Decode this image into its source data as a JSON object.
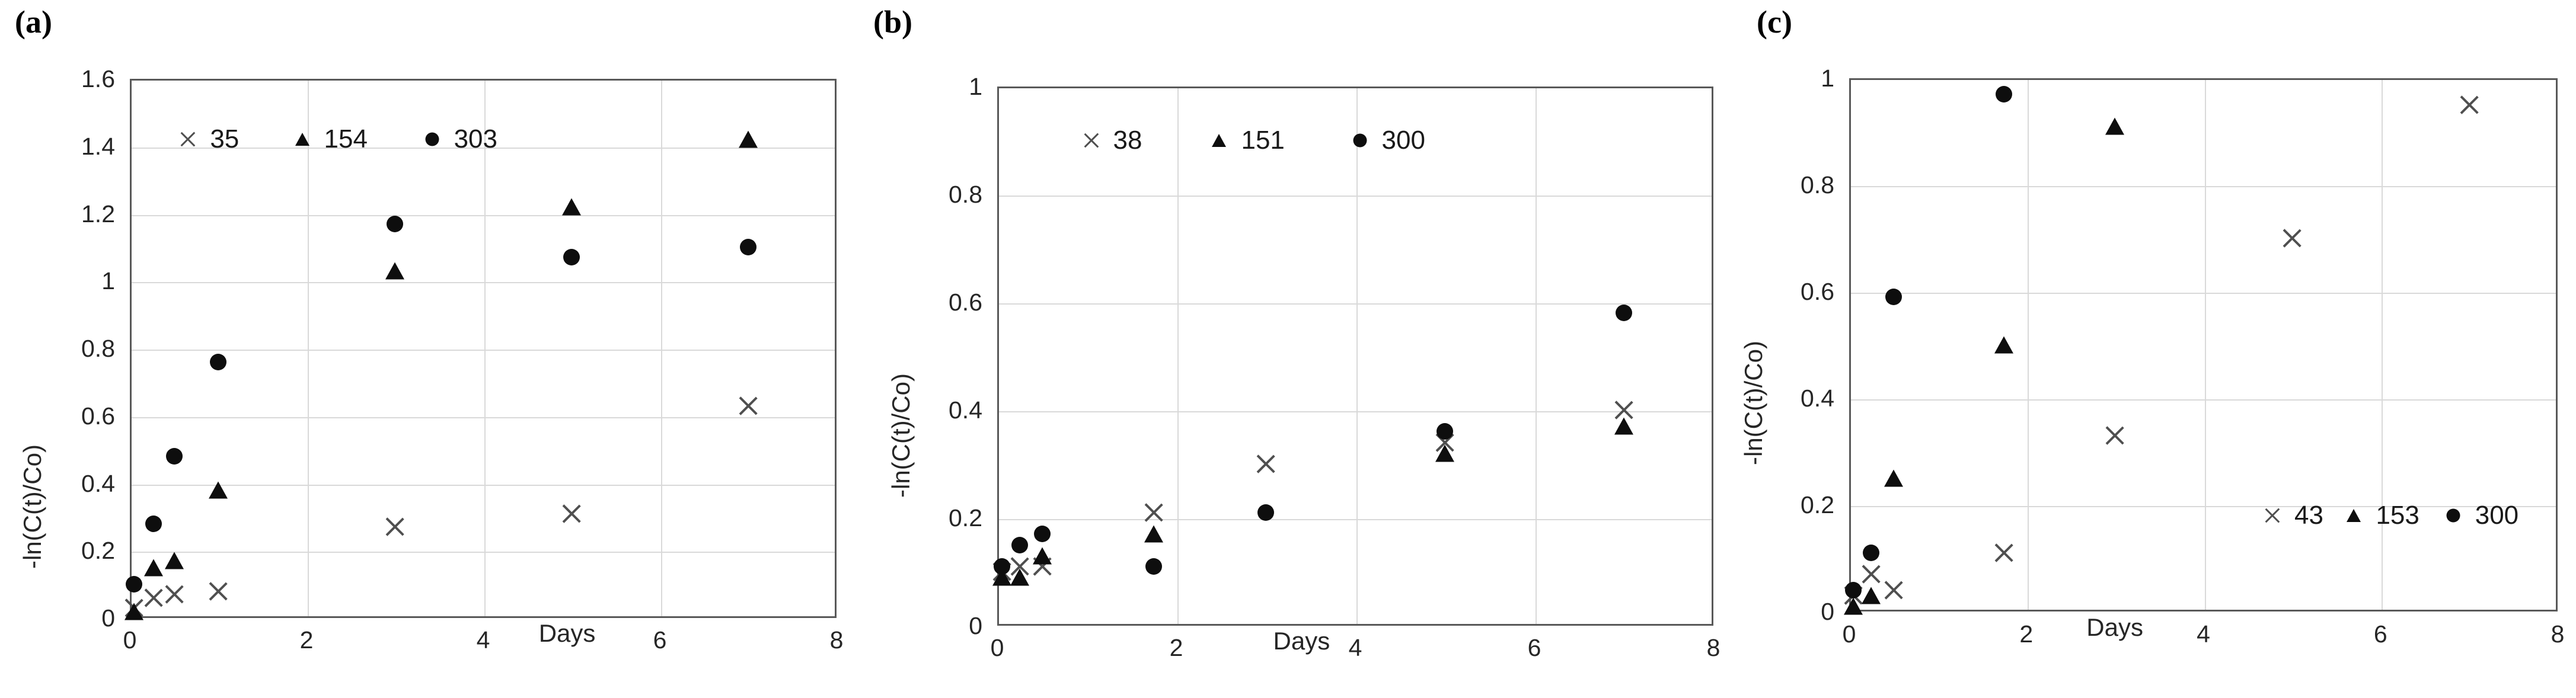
{
  "figure": {
    "background": "#ffffff",
    "colors": {
      "marker_black": "#0e0e0e",
      "marker_cross_gray": "#4f4f4f",
      "gridline": "#d9d9d9",
      "plot_border": "#595959",
      "text": "#262626"
    }
  },
  "chart_data": [
    {
      "type": "scatter",
      "panel_label": "(a)",
      "title": "",
      "xlabel": "Days",
      "ylabel": "-ln(C(t)/Co)",
      "xlim": [
        0,
        8
      ],
      "ylim": [
        0,
        1.6
      ],
      "grid": true,
      "x_ticks": [
        "0",
        "2",
        "4",
        "6",
        "8"
      ],
      "x_tick_values": [
        0,
        2,
        4,
        6,
        8
      ],
      "y_ticks": [
        "0",
        "0.2",
        "0.4",
        "0.6",
        "0.8",
        "1",
        "1.2",
        "1.4",
        "1.6"
      ],
      "y_tick_values": [
        0,
        0.2,
        0.4,
        0.6,
        0.8,
        1.0,
        1.2,
        1.4,
        1.6
      ],
      "xlabel_day_position": 4.95,
      "legend": {
        "placement": "inside-top",
        "y_value": 1.42,
        "items": [
          {
            "marker": "cross",
            "label": "35",
            "x_value": 0.66
          },
          {
            "marker": "triangle",
            "label": "154",
            "x_value": 1.95
          },
          {
            "marker": "circle",
            "label": "303",
            "x_value": 3.42
          }
        ]
      },
      "series": [
        {
          "name": "35",
          "marker": "cross",
          "points": [
            [
              0.05,
              0.03
            ],
            [
              0.27,
              0.06
            ],
            [
              0.5,
              0.07
            ],
            [
              1,
              0.08
            ],
            [
              3,
              0.27
            ],
            [
              5,
              0.31
            ],
            [
              7,
              0.63
            ]
          ]
        },
        {
          "name": "154",
          "marker": "triangle",
          "points": [
            [
              0.05,
              0.02
            ],
            [
              0.27,
              0.15
            ],
            [
              0.5,
              0.17
            ],
            [
              1,
              0.38
            ],
            [
              3,
              1.03
            ],
            [
              5,
              1.22
            ],
            [
              7,
              1.42
            ]
          ]
        },
        {
          "name": "303",
          "marker": "circle",
          "points": [
            [
              0.05,
              0.1
            ],
            [
              0.27,
              0.28
            ],
            [
              0.5,
              0.48
            ],
            [
              1,
              0.76
            ],
            [
              3,
              1.17
            ],
            [
              5,
              1.07
            ],
            [
              7,
              1.1
            ]
          ]
        }
      ]
    },
    {
      "type": "scatter",
      "panel_label": "(b)",
      "title": "",
      "xlabel": "Days",
      "ylabel": "-ln(C(t)/Co)",
      "xlim": [
        0,
        8
      ],
      "ylim": [
        0,
        1
      ],
      "grid": true,
      "x_ticks": [
        "0",
        "2",
        "4",
        "6",
        "8"
      ],
      "x_tick_values": [
        0,
        2,
        4,
        6,
        8
      ],
      "y_ticks": [
        "0",
        "0.2",
        "0.4",
        "0.6",
        "0.8",
        "1"
      ],
      "y_tick_values": [
        0,
        0.2,
        0.4,
        0.6,
        0.8,
        1.0
      ],
      "xlabel_day_position": 3.4,
      "legend": {
        "placement": "inside-top",
        "y_value": 0.9,
        "items": [
          {
            "marker": "cross",
            "label": "38",
            "x_value": 1.05
          },
          {
            "marker": "triangle",
            "label": "151",
            "x_value": 2.48
          },
          {
            "marker": "circle",
            "label": "300",
            "x_value": 4.05
          }
        ]
      },
      "series": [
        {
          "name": "38",
          "marker": "cross",
          "points": [
            [
              0.05,
              0.1
            ],
            [
              0.25,
              0.11
            ],
            [
              0.5,
              0.11
            ],
            [
              1.75,
              0.21
            ],
            [
              3,
              0.3
            ],
            [
              5,
              0.34
            ],
            [
              7,
              0.4
            ]
          ]
        },
        {
          "name": "151",
          "marker": "triangle",
          "points": [
            [
              0.05,
              0.09
            ],
            [
              0.25,
              0.09
            ],
            [
              0.5,
              0.13
            ],
            [
              1.75,
              0.17
            ],
            [
              5,
              0.32
            ],
            [
              7,
              0.37
            ]
          ]
        },
        {
          "name": "300",
          "marker": "circle",
          "points": [
            [
              0.05,
              0.11
            ],
            [
              0.25,
              0.15
            ],
            [
              0.5,
              0.17
            ],
            [
              1.75,
              0.11
            ],
            [
              3,
              0.21
            ],
            [
              5,
              0.36
            ],
            [
              7,
              0.58
            ]
          ]
        }
      ]
    },
    {
      "type": "scatter",
      "panel_label": "(c)",
      "title": "",
      "xlabel": "Days",
      "ylabel": "-ln(C(t)/Co)",
      "xlim": [
        0,
        8
      ],
      "ylim": [
        0,
        1
      ],
      "grid": true,
      "x_ticks": [
        "0",
        "2",
        "4",
        "6",
        "8"
      ],
      "x_tick_values": [
        0,
        2,
        4,
        6,
        8
      ],
      "y_ticks": [
        "0",
        "0.2",
        "0.4",
        "0.6",
        "0.8",
        "1"
      ],
      "y_tick_values": [
        0,
        0.2,
        0.4,
        0.6,
        0.8,
        1.0
      ],
      "xlabel_day_position": 3.0,
      "legend": {
        "placement": "inside-middle-right",
        "y_value": 0.18,
        "items": [
          {
            "marker": "cross",
            "label": "43",
            "x_value": 4.78
          },
          {
            "marker": "triangle",
            "label": "153",
            "x_value": 5.7
          },
          {
            "marker": "circle",
            "label": "300",
            "x_value": 6.82
          }
        ]
      },
      "series": [
        {
          "name": "43",
          "marker": "cross",
          "points": [
            [
              0.05,
              0.03
            ],
            [
              0.25,
              0.07
            ],
            [
              0.5,
              0.04
            ],
            [
              1.75,
              0.11
            ],
            [
              3,
              0.33
            ],
            [
              5,
              0.7
            ],
            [
              7,
              0.95
            ]
          ]
        },
        {
          "name": "153",
          "marker": "triangle",
          "points": [
            [
              0.05,
              0.01
            ],
            [
              0.25,
              0.03
            ],
            [
              0.5,
              0.25
            ],
            [
              1.75,
              0.5
            ],
            [
              3,
              0.91
            ]
          ]
        },
        {
          "name": "300",
          "marker": "circle",
          "points": [
            [
              0.05,
              0.04
            ],
            [
              0.25,
              0.11
            ],
            [
              0.5,
              0.59
            ],
            [
              1.75,
              0.97
            ]
          ]
        }
      ]
    }
  ]
}
